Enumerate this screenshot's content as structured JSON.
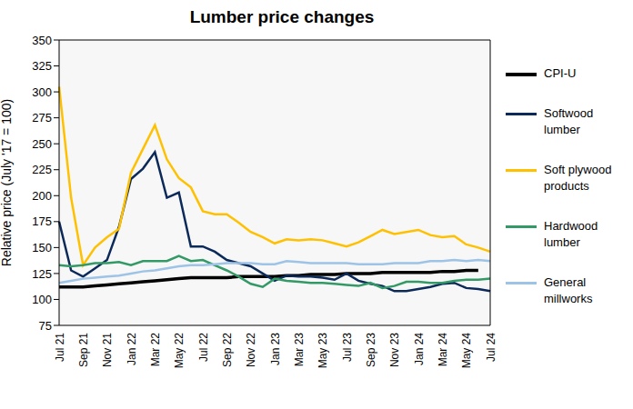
{
  "chart_data": {
    "type": "line",
    "title": "Lumber price changes",
    "y_label": "Relative price (July '17 = 100)",
    "categories": [
      "Jul 21",
      null,
      "Sep 21",
      null,
      "Nov 21",
      null,
      "Jan 22",
      null,
      "Mar 22",
      null,
      "May 22",
      null,
      "Jul 22",
      null,
      "Sep 22",
      null,
      "Nov 22",
      null,
      "Jan 23",
      null,
      "Mar 23",
      null,
      "May 23",
      null,
      "Jul 23",
      null,
      "Sep 23",
      null,
      "Nov 23",
      null,
      "Jan 24",
      null,
      "Mar 24",
      null,
      "May 24",
      null,
      "Jul 24"
    ],
    "ylim": [
      75,
      350
    ],
    "yticks": [
      75,
      100,
      125,
      150,
      175,
      200,
      225,
      250,
      275,
      300,
      325,
      350
    ],
    "grid": false,
    "legend": "right",
    "series": [
      {
        "name": "CPI-U",
        "color": "#000000",
        "values": [
          112,
          112,
          112,
          113,
          114,
          115,
          116,
          117,
          118,
          119,
          120,
          121,
          121,
          121,
          121,
          122,
          122,
          122,
          122,
          123,
          123,
          124,
          124,
          124,
          125,
          125,
          125,
          126,
          126,
          126,
          126,
          126,
          127,
          127,
          128,
          128,
          null
        ]
      },
      {
        "name": "Softwood lumber",
        "color": "#0b2a5a",
        "values": [
          175,
          128,
          122,
          130,
          138,
          170,
          216,
          226,
          242,
          198,
          203,
          151,
          151,
          146,
          138,
          135,
          132,
          125,
          118,
          123,
          122,
          122,
          121,
          119,
          125,
          118,
          115,
          113,
          108,
          108,
          110,
          112,
          115,
          116,
          111,
          110,
          108
        ]
      },
      {
        "name": "Soft plywood products",
        "color": "#ffc000",
        "values": [
          305,
          198,
          133,
          150,
          160,
          168,
          222,
          245,
          268,
          235,
          217,
          208,
          185,
          182,
          182,
          174,
          165,
          160,
          154,
          158,
          157,
          158,
          157,
          154,
          151,
          155,
          161,
          167,
          163,
          165,
          167,
          162,
          160,
          161,
          153,
          150,
          146
        ]
      },
      {
        "name": "Hardwood lumber",
        "color": "#339966",
        "values": [
          133,
          132,
          133,
          135,
          135,
          136,
          133,
          137,
          137,
          137,
          142,
          137,
          138,
          133,
          128,
          122,
          115,
          112,
          120,
          118,
          117,
          116,
          116,
          115,
          114,
          113,
          116,
          111,
          113,
          117,
          117,
          116,
          116,
          118,
          119,
          119,
          120
        ]
      },
      {
        "name": "General millworks",
        "color": "#9dc3e6",
        "values": [
          116,
          118,
          120,
          121,
          122,
          123,
          125,
          127,
          128,
          130,
          132,
          133,
          133,
          134,
          135,
          135,
          135,
          134,
          134,
          137,
          136,
          135,
          135,
          135,
          135,
          134,
          134,
          134,
          135,
          135,
          135,
          137,
          137,
          138,
          137,
          138,
          137
        ]
      }
    ]
  }
}
